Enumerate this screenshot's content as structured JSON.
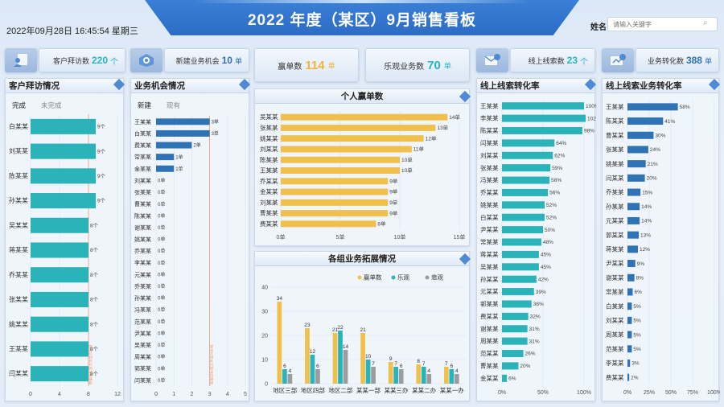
{
  "header": {
    "title": "2022 年度（某区）9月销售看板",
    "datetime": "2022年09月28日 16:45:54 星期三",
    "search_label": "姓名",
    "search_placeholder": "请输入关键字"
  },
  "kpis": {
    "visits": {
      "label": "客户拜访数",
      "value": "220",
      "unit": "个"
    },
    "new_biz": {
      "label": "新建业务机会",
      "value": "10",
      "unit": "单"
    },
    "wins": {
      "label": "赢单数",
      "value": "114",
      "unit": "单"
    },
    "optimistic": {
      "label": "乐观业务数",
      "value": "70",
      "unit": "单"
    },
    "online_leads": {
      "label": "线上线索数",
      "value": "23",
      "unit": "个"
    },
    "conversions": {
      "label": "业务转化数",
      "value": "388",
      "unit": "单"
    }
  },
  "panels": {
    "visits": {
      "title": "客户拜访情况",
      "tab_active": "完成",
      "tab_other": "未完成"
    },
    "opportunities": {
      "title": "业务机会情况",
      "tab_active": "新建",
      "tab_other": "现有"
    },
    "personal_wins": {
      "title": "个人赢单数"
    },
    "group_expansion": {
      "title": "各组业务拓展情况"
    },
    "lead_conversion": {
      "title": "线上线索转化率"
    },
    "lead_biz_conversion": {
      "title": "线上线索业务转化率"
    }
  },
  "colors": {
    "teal": "#2ab3b8",
    "blue": "#2f73b4",
    "gold": "#f0bf4c",
    "gray": "#9c9c9c",
    "accent": "#2ab3c9",
    "banner": "#2c6cc6"
  },
  "chart_data": [
    {
      "id": "visits",
      "type": "bar",
      "orientation": "horizontal",
      "title": "客户拜访情况",
      "categories": [
        "白某某",
        "刘某某",
        "陈某某",
        "孙某某",
        "吴某某",
        "蒋某某",
        "乔某某",
        "张某某",
        "姚某某",
        "王某某",
        "闫某某"
      ],
      "values": [
        9,
        9,
        9,
        9,
        8,
        8,
        8,
        8,
        8,
        8,
        8
      ],
      "value_suffix": "个",
      "xlim": [
        0,
        12
      ],
      "xticks": [
        "0",
        "4",
        "8",
        "12"
      ],
      "reference_line": 8,
      "reference_label": "数据线标签文本显示区域"
    },
    {
      "id": "opportunities",
      "type": "bar",
      "orientation": "horizontal",
      "title": "业务机会情况",
      "categories": [
        "王某某",
        "白某某",
        "费某某",
        "常某某",
        "金某某",
        "刘某某",
        "张某某",
        "曹某某",
        "陈某某",
        "谢某某",
        "姚某某",
        "乔某某",
        "李某某",
        "元某某",
        "乔某某",
        "孙某某",
        "冯某某",
        "范某某",
        "尹某某",
        "吴某某",
        "周某某",
        "郭某某",
        "闫某某"
      ],
      "values": [
        3,
        3,
        2,
        1,
        1,
        0,
        0,
        0,
        0,
        0,
        0,
        0,
        0,
        0,
        0,
        0,
        0,
        0,
        0,
        0,
        0,
        0,
        0
      ],
      "value_suffix": "单",
      "xlim": [
        0,
        5
      ],
      "xticks": [
        "0",
        "1",
        "2",
        "3",
        "4",
        "5"
      ],
      "reference_line": 3,
      "reference_label": "数据线标签文本显示区域"
    },
    {
      "id": "personal_wins",
      "type": "bar",
      "orientation": "horizontal",
      "title": "个人赢单数",
      "categories": [
        "吴某某",
        "张某某",
        "姚某某",
        "刘某某",
        "陈某某",
        "王某某",
        "乔某某",
        "金某某",
        "刘某某",
        "曹某某",
        "费某某"
      ],
      "values": [
        14,
        13,
        12,
        11,
        10,
        10,
        9,
        9,
        9,
        9,
        8
      ],
      "value_suffix": "单",
      "xlim": [
        0,
        15
      ],
      "xticks": [
        "0单",
        "5单",
        "10单",
        "15单"
      ]
    },
    {
      "id": "group_expansion",
      "type": "bar",
      "title": "各组业务拓展情况",
      "categories": [
        "地区三部",
        "地区四部",
        "地区二部",
        "某某一部",
        "某某三办",
        "某某二办",
        "某某一办"
      ],
      "series": [
        {
          "name": "赢单数",
          "values": [
            34,
            23,
            21,
            21,
            9,
            8,
            7
          ]
        },
        {
          "name": "乐观",
          "values": [
            6,
            12,
            22,
            10,
            7,
            7,
            6
          ]
        },
        {
          "name": "悲观",
          "values": [
            4,
            6,
            14,
            7,
            6,
            4,
            4
          ]
        }
      ],
      "ylim": [
        0,
        40
      ],
      "yticks": [
        "0",
        "10",
        "20",
        "30",
        "40"
      ],
      "legend": "top-right"
    },
    {
      "id": "lead_conversion",
      "type": "bar",
      "orientation": "horizontal",
      "title": "线上线索转化率",
      "categories": [
        "王某某",
        "李某某",
        "陈某某",
        "闫某某",
        "刘某某",
        "张某某",
        "冯某某",
        "乔某某",
        "姚某某",
        "白某某",
        "尹某某",
        "常某某",
        "蒋某某",
        "吴某某",
        "孙某某",
        "元某某",
        "郭某某",
        "费某某",
        "谢某某",
        "周某某",
        "范某某",
        "曹某某",
        "金某某"
      ],
      "values": [
        100,
        102,
        98,
        64,
        62,
        59,
        58,
        56,
        52,
        52,
        50,
        48,
        45,
        45,
        42,
        39,
        36,
        32,
        31,
        31,
        26,
        20,
        6
      ],
      "value_suffix": "%",
      "xlim": [
        0,
        100
      ],
      "xticks": [
        "0%",
        "50%",
        "100%"
      ]
    },
    {
      "id": "lead_biz_conversion",
      "type": "bar",
      "orientation": "horizontal",
      "title": "线上线索业务转化率",
      "categories": [
        "王某某",
        "陈某某",
        "曹某某",
        "张某某",
        "姚某某",
        "闫某某",
        "乔某某",
        "孙某某",
        "元某某",
        "郭某某",
        "蒋某某",
        "尹某某",
        "谢某某",
        "常某某",
        "白某某",
        "刘某某",
        "周某某",
        "范某某",
        "李某某",
        "费某某"
      ],
      "values": [
        58,
        41,
        30,
        24,
        21,
        20,
        15,
        14,
        14,
        13,
        12,
        9,
        8,
        6,
        5,
        5,
        5,
        5,
        3,
        2
      ],
      "value_suffix": "%",
      "xlim": [
        0,
        100
      ],
      "xticks": [
        "0%",
        "25%",
        "50%",
        "75%",
        "100%"
      ]
    }
  ]
}
